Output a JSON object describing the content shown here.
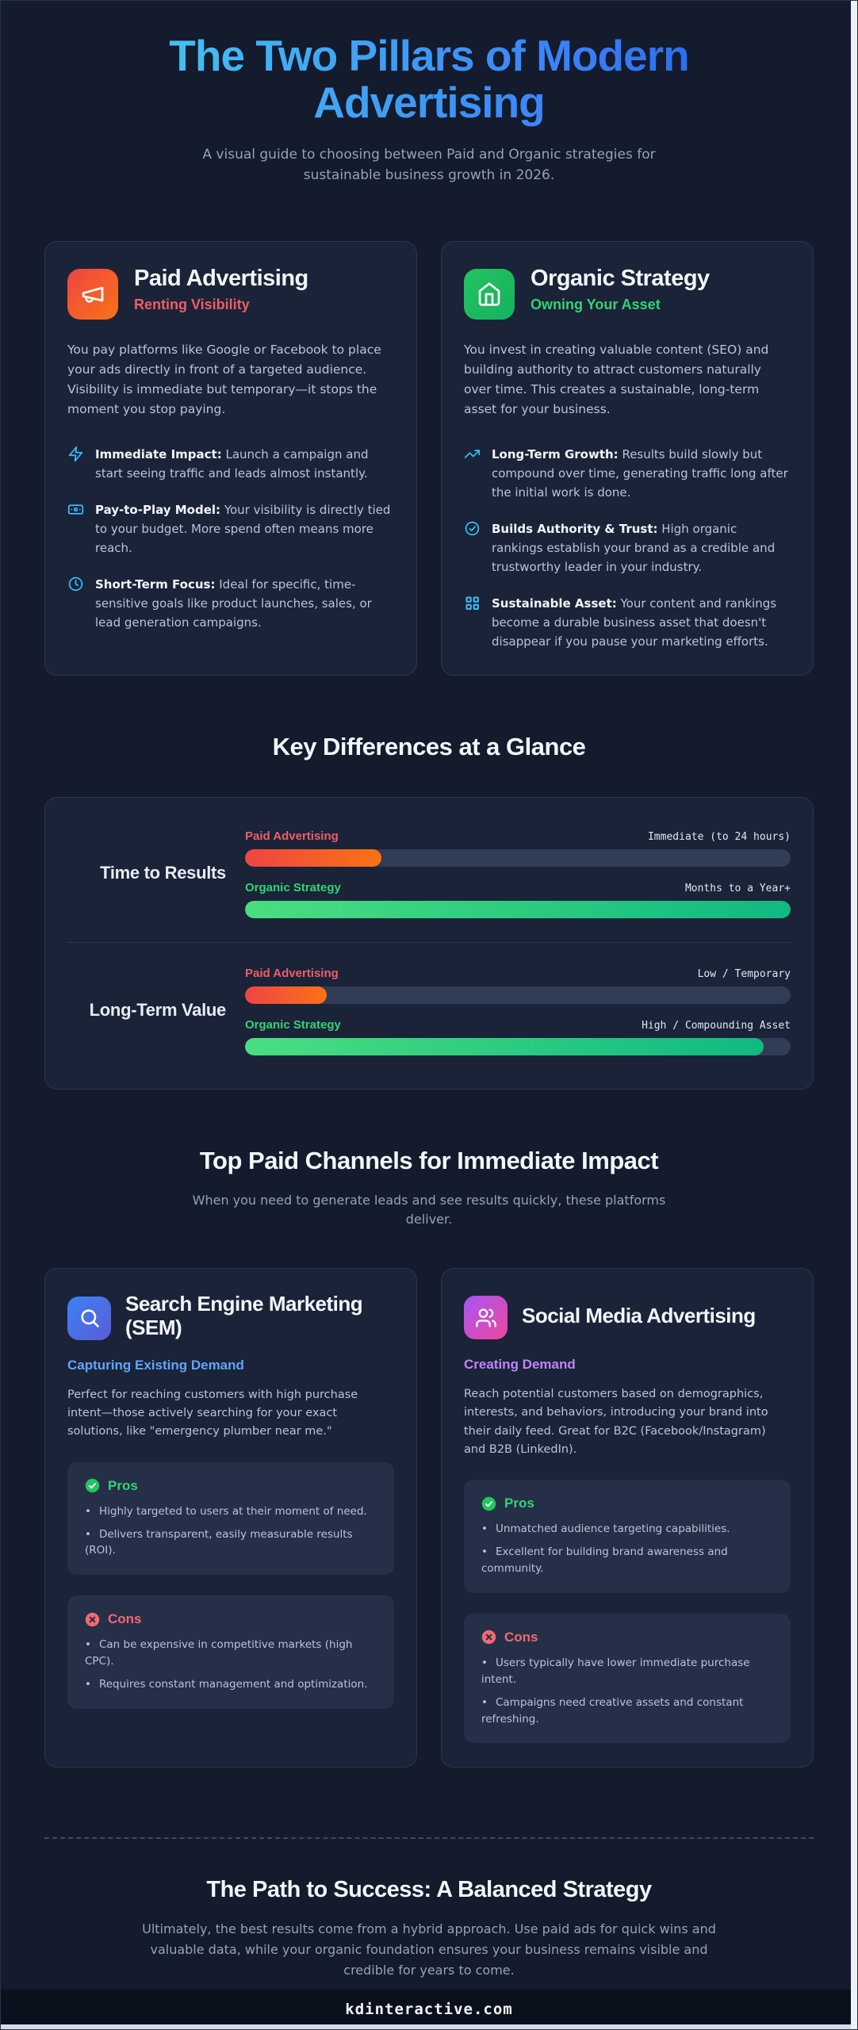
{
  "page": {
    "title": "The Two Pillars of Modern Advertising",
    "subtitle": "A visual guide to choosing between Paid and Organic strategies for sustainable business growth in 2026.",
    "footer_domain": "kdinteractive.com"
  },
  "colors": {
    "background": "#131b2d",
    "card_background": "#1a2338",
    "panel_background": "#252f48",
    "title_gradient": [
      "#45c6f1",
      "#2563eb"
    ],
    "paid_accent": "#ef5d68",
    "paid_gradient": [
      "#ef4444",
      "#f97316"
    ],
    "organic_accent": "#33d374",
    "organic_gradient": [
      "#4ade80",
      "#10b981"
    ],
    "sem_accent": "#60a5fa",
    "sem_icon_gradient": [
      "#3b82f6",
      "#5b5bd6"
    ],
    "social_accent": "#c084fc",
    "social_icon_gradient": [
      "#a855f7",
      "#ec4899"
    ],
    "feature_icon": "#38bdf8",
    "pros_accent": "#34d178",
    "cons_accent": "#f3696f"
  },
  "pillars": [
    {
      "icon": "megaphone-icon",
      "title": "Paid Advertising",
      "tagline": "Renting Visibility",
      "description": "You pay platforms like Google or Facebook to place your ads directly in front of a targeted audience. Visibility is immediate but temporary—it stops the moment you stop paying.",
      "features": [
        {
          "icon": "bolt-icon",
          "lead": "Immediate Impact:",
          "text": " Launch a campaign and start seeing traffic and leads almost instantly."
        },
        {
          "icon": "banknote-icon",
          "lead": "Pay-to-Play Model:",
          "text": " Your visibility is directly tied to your budget. More spend often means more reach."
        },
        {
          "icon": "clock-icon",
          "lead": "Short-Term Focus:",
          "text": " Ideal for specific, time-sensitive goals like product launches, sales, or lead generation campaigns."
        }
      ]
    },
    {
      "icon": "home-icon",
      "title": "Organic Strategy",
      "tagline": "Owning Your Asset",
      "description": "You invest in creating valuable content (SEO) and building authority to attract customers naturally over time. This creates a sustainable, long-term asset for your business.",
      "features": [
        {
          "icon": "trending-up-icon",
          "lead": "Long-Term Growth:",
          "text": " Results build slowly but compound over time, generating traffic long after the initial work is done."
        },
        {
          "icon": "check-circle-icon",
          "lead": "Builds Authority & Trust:",
          "text": " High organic rankings establish your brand as a credible and trustworthy leader in your industry."
        },
        {
          "icon": "grid-icon",
          "lead": "Sustainable Asset:",
          "text": " Your content and rankings become a durable business asset that doesn't disappear if you pause your marketing efforts."
        }
      ]
    }
  ],
  "comparison": {
    "heading": "Key Differences at a Glance",
    "rows": [
      {
        "metric": "Time to Results",
        "paid_label": "Paid Advertising",
        "paid_value": "Immediate (to 24 hours)",
        "paid_percent": 25,
        "organic_label": "Organic Strategy",
        "organic_value": "Months to a Year+",
        "organic_percent": 100
      },
      {
        "metric": "Long-Term Value",
        "paid_label": "Paid Advertising",
        "paid_value": "Low / Temporary",
        "paid_percent": 15,
        "organic_label": "Organic Strategy",
        "organic_value": "High / Compounding Asset",
        "organic_percent": 95
      }
    ]
  },
  "channels": {
    "heading": "Top Paid Channels for Immediate Impact",
    "subtitle": "When you need to generate leads and see results quickly, these platforms deliver.",
    "cards": [
      {
        "icon": "search-icon",
        "title": "Search Engine Marketing (SEM)",
        "tagline": "Capturing Existing Demand",
        "description": "Perfect for reaching customers with high purchase intent—those actively searching for your exact solutions, like \"emergency plumber near me.\"",
        "pros_label": "Pros",
        "pros": [
          "Highly targeted to users at their moment of need.",
          "Delivers transparent, easily measurable results (ROI)."
        ],
        "cons_label": "Cons",
        "cons": [
          "Can be expensive in competitive markets (high CPC).",
          "Requires constant management and optimization."
        ]
      },
      {
        "icon": "users-icon",
        "title": "Social Media Advertising",
        "tagline": "Creating Demand",
        "description": "Reach potential customers based on demographics, interests, and behaviors, introducing your brand into their daily feed. Great for B2C (Facebook/Instagram) and B2B (LinkedIn).",
        "pros_label": "Pros",
        "pros": [
          "Unmatched audience targeting capabilities.",
          "Excellent for building brand awareness and community."
        ],
        "cons_label": "Cons",
        "cons": [
          "Users typically have lower immediate purchase intent.",
          "Campaigns need creative assets and constant refreshing."
        ]
      }
    ]
  },
  "conclusion": {
    "heading": "The Path to Success: A Balanced Strategy",
    "text": "Ultimately, the best results come from a hybrid approach. Use paid ads for quick wins and valuable data, while your organic foundation ensures your business remains visible and credible for years to come."
  }
}
